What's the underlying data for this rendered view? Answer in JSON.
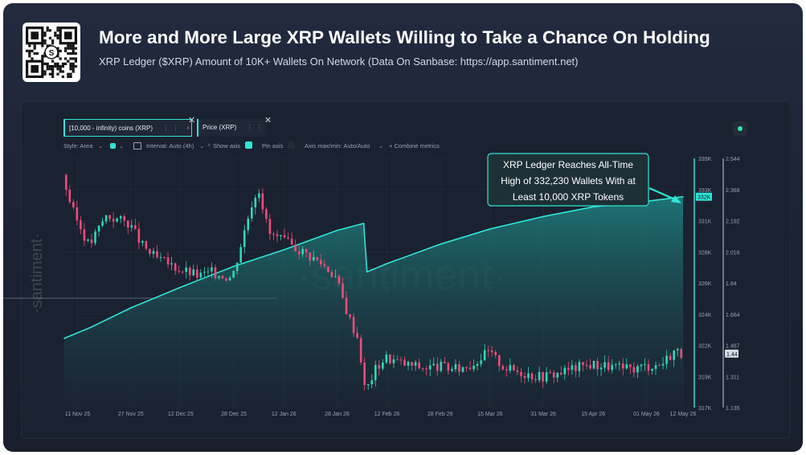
{
  "header": {
    "title": "More and More Large XRP Wallets Willing to Take a Chance On Holding",
    "subtitle": "XRP Ledger ($XRP) Amount of 10K+ Wallets On Network (Data On Sanbase: https://app.santiment.net)",
    "qr_logo_glyph": "S"
  },
  "chips": [
    {
      "label": "[10,000 - infinity) coins (XRP)",
      "dots": "⋮ ⋮",
      "close": "×"
    },
    {
      "label": "Price (XRP)",
      "dots": "⋮ ⋮",
      "close": "×"
    }
  ],
  "toolbar": {
    "style": "Style: Area",
    "interval": "Interval: Auto (4h)",
    "show_axis": "Show axis",
    "pin_axis": "Pin axis",
    "axis_minmax": "Axis max/min: Auto/Auto",
    "combine": "+ Combine metrics",
    "caret": "⌄"
  },
  "watermark": "·santiment·",
  "side_watermark": "·santiment·",
  "annotation": {
    "line1": "XRP Ledger Reaches All-Time",
    "line2": "High of 332,230 Wallets With at",
    "line3": "Least 10,000 XRP Tokens"
  },
  "colors": {
    "wallet_line": "#2ee6d6",
    "candle_up": "#2ed9b6",
    "candle_down": "#ef4d78",
    "background": "#1a2130",
    "grid": "#252e3f"
  },
  "chart_data": {
    "type": "area",
    "x_tick_labels": [
      "11 Nov 25",
      "27 Nov 25",
      "12 Dec 25",
      "28 Dec 25",
      "12 Jan 26",
      "28 Jan 26",
      "12 Feb 26",
      "28 Feb 26",
      "15 Mar 26",
      "31 Mar 26",
      "15 Apr 26",
      "01 May 26",
      "12 May 26"
    ],
    "legend_position": "top-left",
    "grid": true,
    "series": [
      {
        "name": "[10,000 - infinity) coins (XRP)",
        "type": "area",
        "axis": "left",
        "ylim": [
          317000,
          335000
        ],
        "y_tick_labels": [
          "335K",
          "333K",
          "331K",
          "328K",
          "326K",
          "324K",
          "322K",
          "319K",
          "317K"
        ],
        "current_value_label": "332K",
        "x": [
          "2025-11-07",
          "2025-11-15",
          "2025-11-27",
          "2025-12-12",
          "2025-12-28",
          "2026-01-12",
          "2026-01-28",
          "2026-02-05",
          "2026-02-06",
          "2026-02-12",
          "2026-02-28",
          "2026-03-15",
          "2026-03-31",
          "2026-04-15",
          "2026-05-01",
          "2026-05-12"
        ],
        "values": [
          322000,
          322800,
          324200,
          325700,
          327200,
          328400,
          329800,
          330300,
          326800,
          327400,
          328800,
          329900,
          330800,
          331500,
          331900,
          332230
        ]
      },
      {
        "name": "Price (XRP)",
        "type": "candlestick",
        "axis": "right",
        "ylim": [
          1.135,
          2.544
        ],
        "y_tick_labels": [
          "2.544",
          "2.368",
          "2.192",
          "2.016",
          "1.84",
          "1.664",
          "1.487",
          "1.311",
          "1.135"
        ],
        "current_value_label": "1.44",
        "x": [
          "2025-11-07",
          "2025-11-10",
          "2025-11-15",
          "2025-11-20",
          "2025-11-27",
          "2025-12-01",
          "2025-12-05",
          "2025-12-12",
          "2025-12-18",
          "2025-12-22",
          "2025-12-28",
          "2026-01-03",
          "2026-01-05",
          "2026-01-08",
          "2026-01-12",
          "2026-01-18",
          "2026-01-24",
          "2026-01-28",
          "2026-02-01",
          "2026-02-04",
          "2026-02-06",
          "2026-02-09",
          "2026-02-12",
          "2026-02-18",
          "2026-02-24",
          "2026-02-28",
          "2026-03-05",
          "2026-03-10",
          "2026-03-15",
          "2026-03-20",
          "2026-03-26",
          "2026-03-31",
          "2026-04-05",
          "2026-04-10",
          "2026-04-15",
          "2026-04-20",
          "2026-04-26",
          "2026-05-01",
          "2026-05-06",
          "2026-05-10",
          "2026-05-12"
        ],
        "values": [
          2.45,
          2.25,
          2.05,
          2.22,
          2.18,
          2.05,
          1.98,
          1.92,
          1.88,
          1.9,
          1.87,
          2.3,
          2.38,
          2.12,
          2.08,
          2.02,
          1.95,
          1.88,
          1.65,
          1.52,
          1.22,
          1.35,
          1.42,
          1.38,
          1.36,
          1.37,
          1.35,
          1.38,
          1.45,
          1.36,
          1.33,
          1.31,
          1.33,
          1.36,
          1.38,
          1.37,
          1.35,
          1.37,
          1.38,
          1.46,
          1.44
        ]
      }
    ]
  }
}
